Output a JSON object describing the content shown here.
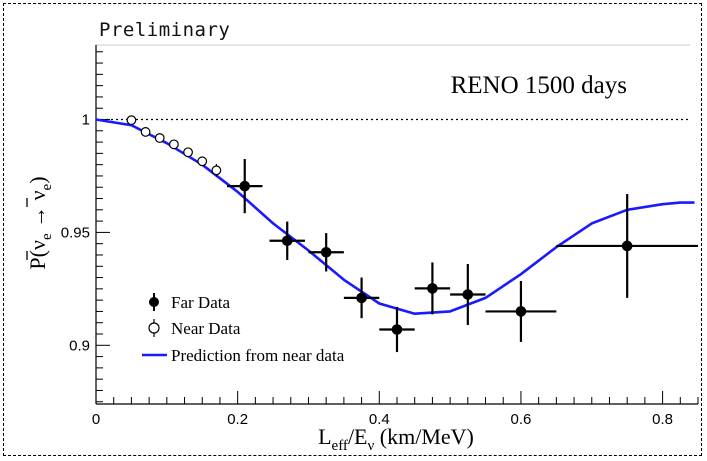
{
  "header": {
    "preliminary": "Preliminary"
  },
  "chart_data": {
    "type": "scatter",
    "annotation": "RENO 1500 days",
    "xlabel": {
      "main": "L",
      "sub1": "eff",
      "mid": "/E",
      "sub2": "ν",
      "tail": " (km/MeV)"
    },
    "ylabel": {
      "main": "P(",
      "nu1": "ν",
      "sub1": "e",
      "arrow": " → ",
      "nu2": "ν",
      "sub2": "e",
      "close": ")"
    },
    "xlim": [
      0,
      0.85
    ],
    "ylim": [
      0.874,
      1.033
    ],
    "x_ticks": [
      0,
      0.2,
      0.4,
      0.6,
      0.8
    ],
    "x_tick_labels": [
      "0",
      "0.2",
      "0.4",
      "0.6",
      "0.8"
    ],
    "y_ticks": [
      0.9,
      0.95,
      1.0
    ],
    "y_tick_labels": [
      "0.9",
      "0.95",
      "1"
    ],
    "reference_line": {
      "y": 1.0,
      "style": "dotted"
    },
    "legend": {
      "position": "bottom-left",
      "entries": [
        "Far Data",
        "Near Data",
        "Prediction from near data"
      ]
    },
    "series": [
      {
        "name": "Far Data",
        "marker": "filled-circle",
        "points": [
          {
            "x": 0.21,
            "y": 0.9705,
            "xerr": 0.025,
            "yerr": 0.012
          },
          {
            "x": 0.27,
            "y": 0.9463,
            "xerr": 0.025,
            "yerr": 0.0085
          },
          {
            "x": 0.325,
            "y": 0.9412,
            "xerr": 0.025,
            "yerr": 0.0085
          },
          {
            "x": 0.375,
            "y": 0.921,
            "xerr": 0.025,
            "yerr": 0.009
          },
          {
            "x": 0.425,
            "y": 0.907,
            "xerr": 0.025,
            "yerr": 0.01
          },
          {
            "x": 0.475,
            "y": 0.9252,
            "xerr": 0.025,
            "yerr": 0.0115
          },
          {
            "x": 0.525,
            "y": 0.9225,
            "xerr": 0.025,
            "yerr": 0.0135
          },
          {
            "x": 0.6,
            "y": 0.915,
            "xerr": 0.05,
            "yerr": 0.0135
          },
          {
            "x": 0.75,
            "y": 0.944,
            "xerr": 0.1,
            "yerr": 0.023
          }
        ],
        "color": "#000000"
      },
      {
        "name": "Near Data",
        "marker": "open-circle",
        "points": [
          {
            "x": 0.05,
            "y": 0.9997,
            "yerr": 0.0007
          },
          {
            "x": 0.07,
            "y": 0.9945,
            "yerr": 0.0009
          },
          {
            "x": 0.09,
            "y": 0.9918,
            "yerr": 0.001
          },
          {
            "x": 0.11,
            "y": 0.989,
            "yerr": 0.0012
          },
          {
            "x": 0.13,
            "y": 0.9855,
            "yerr": 0.0015
          },
          {
            "x": 0.15,
            "y": 0.9815,
            "yerr": 0.002
          },
          {
            "x": 0.17,
            "y": 0.9775,
            "yerr": 0.0028
          }
        ],
        "color": "#000000"
      },
      {
        "name": "Prediction from near data",
        "style": "line",
        "color": "#1a1aff",
        "x": [
          0,
          0.05,
          0.1,
          0.15,
          0.2,
          0.25,
          0.3,
          0.35,
          0.4,
          0.45,
          0.5,
          0.55,
          0.6,
          0.65,
          0.7,
          0.75,
          0.8,
          0.825,
          0.845
        ],
        "y": [
          1.0,
          0.9975,
          0.9895,
          0.98,
          0.968,
          0.954,
          0.942,
          0.929,
          0.9185,
          0.914,
          0.915,
          0.921,
          0.9315,
          0.9435,
          0.954,
          0.96,
          0.9625,
          0.9632,
          0.9632
        ]
      }
    ]
  }
}
